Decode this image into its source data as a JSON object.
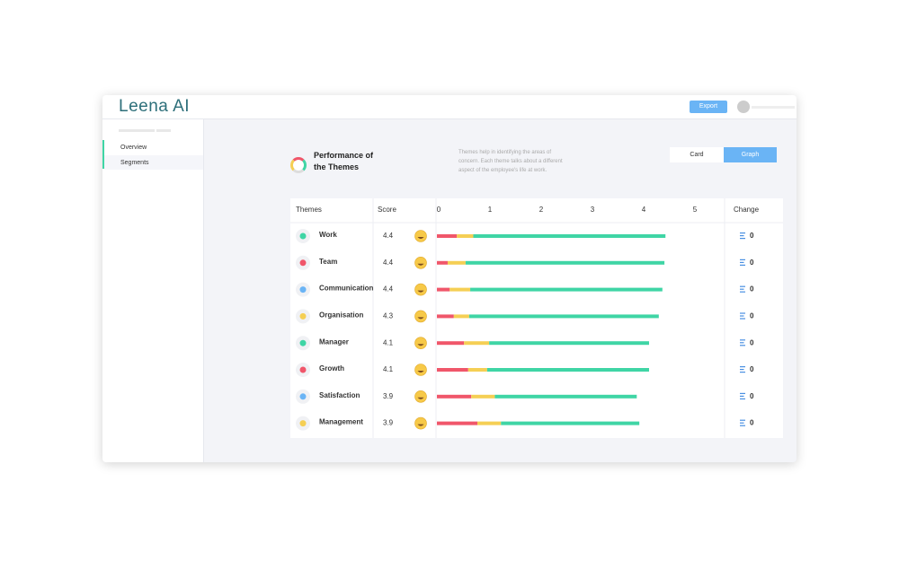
{
  "header": {
    "logo": "Leena AI",
    "export_button": "Export"
  },
  "sidebar": {
    "items": [
      "Overview",
      "Segments"
    ]
  },
  "panel": {
    "title": "Performance of the Themes",
    "description": "Themes help in identifying the areas of concern. Each theme talks about a different aspect of the employee's life at work.",
    "toggle": [
      "Card",
      "Graph"
    ]
  },
  "table": {
    "columns": [
      "Themes",
      "Score",
      "Change"
    ],
    "scores": [
      4.4,
      4.4,
      4.4,
      4.3,
      4.1,
      4.1,
      3.9,
      3.9
    ],
    "changes": [
      0,
      0,
      0,
      0,
      0,
      0,
      0,
      0
    ]
  },
  "chart_data": {
    "type": "bar",
    "orientation": "horizontal",
    "stacked": true,
    "categories": [
      "Work",
      "Team",
      "Communication",
      "Organisation",
      "Manager",
      "Growth",
      "Satisfaction",
      "Management"
    ],
    "xlim": [
      0,
      5
    ],
    "xticks": [
      0,
      1,
      2,
      3,
      4,
      5
    ],
    "series": [
      {
        "color": "#f0566a",
        "values": [
          0.39,
          0.21,
          0.25,
          0.33,
          0.53,
          0.61,
          0.67,
          0.79
        ]
      },
      {
        "color": "#f5cf54",
        "values": [
          0.32,
          0.35,
          0.4,
          0.3,
          0.49,
          0.37,
          0.46,
          0.46
        ]
      },
      {
        "color": "#3fd5a5",
        "values": [
          3.75,
          3.88,
          3.75,
          3.7,
          3.12,
          3.16,
          2.77,
          2.7
        ]
      }
    ]
  }
}
